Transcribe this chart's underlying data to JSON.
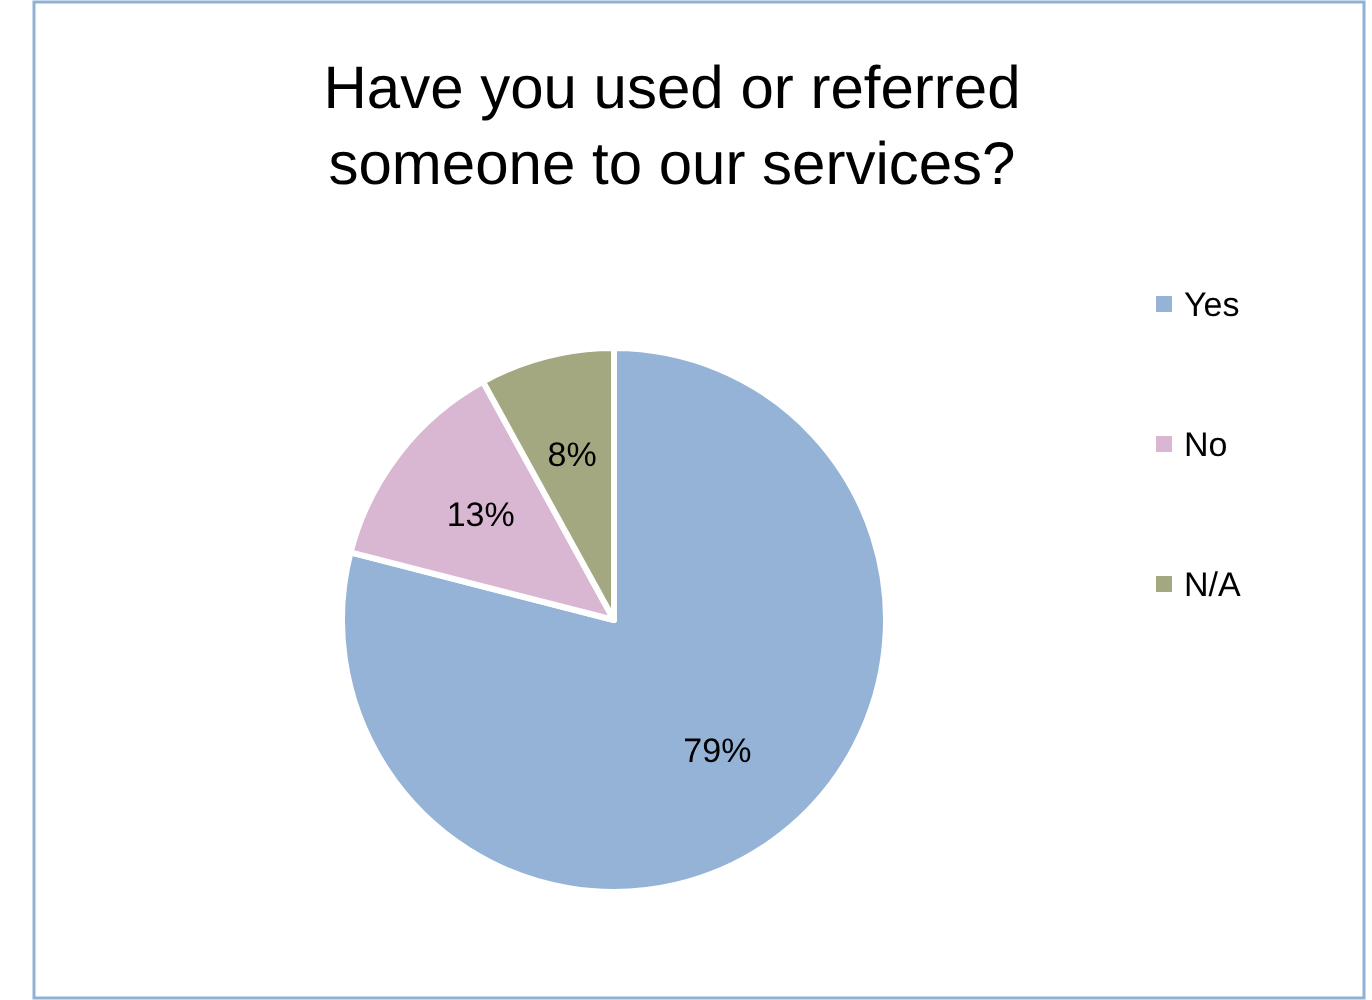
{
  "chart_data": {
    "type": "pie",
    "title": "Have you used or referred someone to our services?",
    "categories": [
      "Yes",
      "No",
      "N/A"
    ],
    "values": [
      79,
      13,
      8
    ],
    "value_labels": [
      "79%",
      "13%",
      "8%"
    ],
    "colors": [
      "#95b3d7",
      "#d9b7d2",
      "#a4a880"
    ],
    "legend": "right"
  }
}
